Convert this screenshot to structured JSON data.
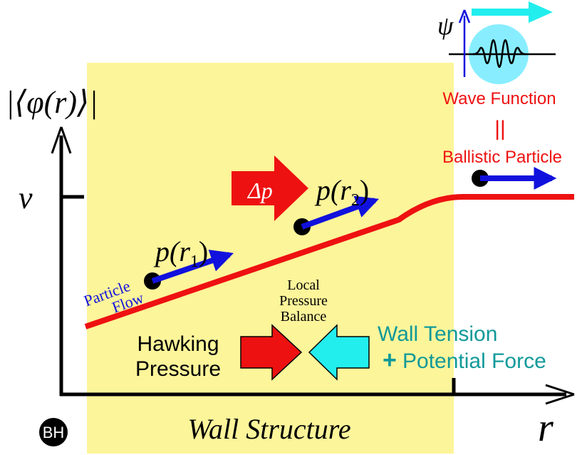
{
  "colors": {
    "wall": "#fdf59a",
    "curve": "#ee1111",
    "axis": "#000000",
    "momentum_arrow": "#1111dd",
    "delta_arrow": "#ee1111",
    "red_text": "#ee1111",
    "teal_text": "#119999",
    "cyan_arrow": "#22eeee",
    "wave_circle": "#88eeff"
  },
  "labels": {
    "y_axis": "|⟨φ(r)⟩|",
    "v_tick": "v",
    "x_axis": "r",
    "p_r1": "p(r",
    "p_r1_sub": "1",
    "p_r2": "p(r",
    "p_r2_sub": "2",
    "close_paren": ")",
    "delta_p": "Δp",
    "particle_flow_1": "Particle",
    "particle_flow_2": "Flow",
    "local_pressure_1": "Local",
    "local_pressure_2": "Pressure",
    "local_pressure_3": "Balance",
    "hawking_1": "Hawking",
    "hawking_2": "Pressure",
    "wall_tension": "Wall Tension",
    "plus": "+",
    "potential_force": "Potential Force",
    "wall_structure": "Wall Structure",
    "bh": "BH",
    "psi": "ψ",
    "wave_function": "Wave Function",
    "equiv": "||",
    "ballistic_particle": "Ballistic Particle"
  }
}
